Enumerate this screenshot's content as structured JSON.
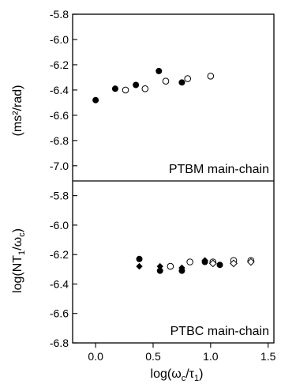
{
  "chart_data": {
    "type": "scatter",
    "x_label": {
      "base": "log(ω",
      "sub1": "c",
      "mid": "/τ",
      "sub2": "1",
      "end": ")"
    },
    "y_label": {
      "base": "log(NT",
      "sub1": "1",
      "mid": "/ω",
      "sub2": "c",
      "end": ")"
    },
    "y_unit": "(ms²/rad)",
    "xlim": [
      -0.2,
      1.55
    ],
    "x_ticks": [
      0.0,
      0.5,
      1.0,
      1.5
    ],
    "x_tick_labels": [
      "0.0",
      "0.5",
      "1.0",
      "1.5"
    ],
    "panels": [
      {
        "label": "PTBM main-chain",
        "ylim": [
          -7.12,
          -5.8
        ],
        "y_ticks": [
          -5.8,
          -6.0,
          -6.2,
          -6.4,
          -6.6,
          -6.8,
          -7.0
        ],
        "y_tick_labels": [
          "-5.8",
          "-6.0",
          "-6.2",
          "-6.4",
          "-6.6",
          "-6.8",
          "-7.0"
        ],
        "series": [
          {
            "marker": "filled-circle",
            "points": [
              [
                0.0,
                -6.48
              ],
              [
                0.17,
                -6.39
              ],
              [
                0.35,
                -6.36
              ],
              [
                0.55,
                -6.25
              ],
              [
                0.75,
                -6.34
              ]
            ]
          },
          {
            "marker": "open-circle",
            "points": [
              [
                0.26,
                -6.4
              ],
              [
                0.43,
                -6.39
              ],
              [
                0.61,
                -6.33
              ],
              [
                0.8,
                -6.31
              ],
              [
                1.0,
                -6.29
              ]
            ]
          }
        ]
      },
      {
        "label": "PTBC main-chain",
        "ylim": [
          -6.8,
          -5.7
        ],
        "y_ticks": [
          -5.8,
          -6.0,
          -6.2,
          -6.4,
          -6.6,
          -6.8
        ],
        "y_tick_labels": [
          "-5.8",
          "-6.0",
          "-6.2",
          "-6.4",
          "-6.6",
          "-6.8"
        ],
        "series": [
          {
            "marker": "filled-circle",
            "points": [
              [
                0.38,
                -6.23
              ],
              [
                0.56,
                -6.31
              ],
              [
                0.75,
                -6.31
              ],
              [
                0.95,
                -6.25
              ],
              [
                1.08,
                -6.27
              ]
            ]
          },
          {
            "marker": "filled-diamond",
            "points": [
              [
                0.38,
                -6.28
              ],
              [
                0.56,
                -6.28
              ],
              [
                0.75,
                -6.29
              ],
              [
                0.95,
                -6.24
              ]
            ]
          },
          {
            "marker": "open-circle",
            "points": [
              [
                0.65,
                -6.28
              ],
              [
                0.82,
                -6.25
              ],
              [
                1.02,
                -6.25
              ],
              [
                1.2,
                -6.24
              ],
              [
                1.35,
                -6.24
              ]
            ]
          },
          {
            "marker": "open-diamond",
            "points": [
              [
                1.02,
                -6.26
              ],
              [
                1.2,
                -6.26
              ],
              [
                1.35,
                -6.25
              ]
            ]
          }
        ]
      }
    ]
  }
}
